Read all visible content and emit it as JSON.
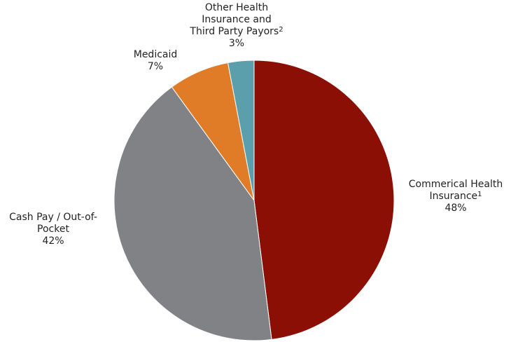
{
  "chart_data": {
    "type": "pie",
    "title": "",
    "slices": [
      {
        "name": "Commerical Health Insurance",
        "label_lines": [
          "Commerical Health",
          "Insurance"
        ],
        "footnote": "1",
        "value": 48,
        "value_label": "48%",
        "color": "#8B0F05"
      },
      {
        "name": "Cash Pay / Out-of-Pocket",
        "label_lines": [
          "Cash Pay / Out-of-",
          "Pocket"
        ],
        "footnote": "",
        "value": 42,
        "value_label": "42%",
        "color": "#818285"
      },
      {
        "name": "Medicaid",
        "label_lines": [
          "Medicaid"
        ],
        "footnote": "",
        "value": 7,
        "value_label": "7%",
        "color": "#E07B27"
      },
      {
        "name": "Other Health Insurance and Third Party Payors",
        "label_lines": [
          "Other Health",
          "Insurance and",
          "Third Party Payors"
        ],
        "footnote": "2",
        "value": 3,
        "value_label": "3%",
        "color": "#5B9FAC"
      }
    ],
    "start_angle_deg": 0,
    "direction": "clockwise",
    "legend": "none"
  }
}
